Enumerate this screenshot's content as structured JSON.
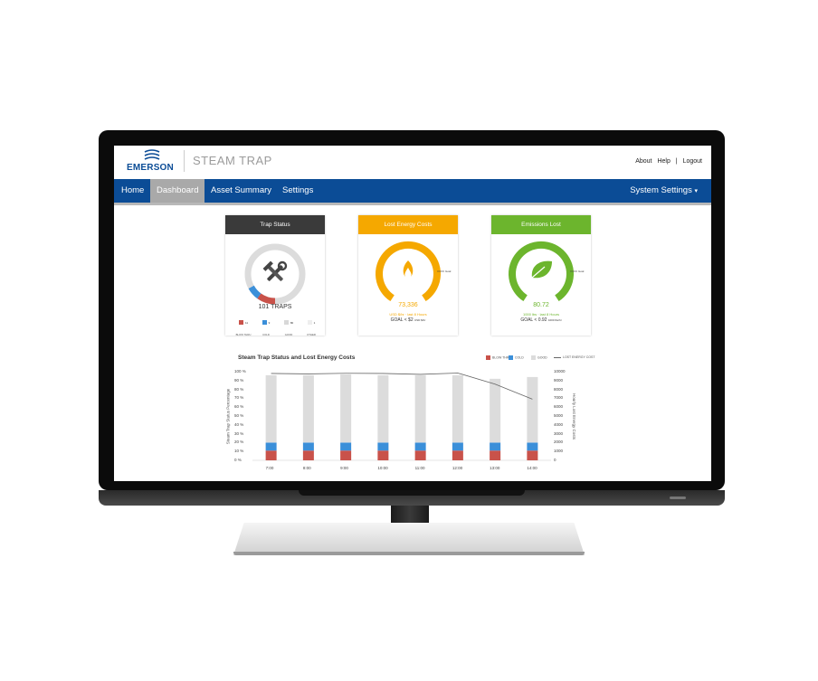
{
  "header": {
    "brand": "EMERSON",
    "product": "STEAM TRAP",
    "links": {
      "about": "About",
      "sep": "|",
      "help": "Help",
      "logout": "Logout"
    }
  },
  "nav": {
    "home": "Home",
    "dashboard": "Dashboard",
    "asset_summary": "Asset Summary",
    "settings": "Settings",
    "system_settings": "System Settings",
    "caret": "▾"
  },
  "trap_status": {
    "title": "Trap Status",
    "count": "101 TRAPS",
    "color": "#3a3a3a",
    "legend": [
      {
        "label": "BLOW THRU",
        "value": "11",
        "color": "#c9524a"
      },
      {
        "label": "COLD",
        "value": "9",
        "color": "#3b8fd9"
      },
      {
        "label": "GOOD",
        "value": "80",
        "color": "#d8d8d8"
      },
      {
        "label": "OTHER",
        "value": "1",
        "color": "#eeeeee"
      }
    ]
  },
  "lost_energy": {
    "title": "Lost Energy Costs",
    "value": "73,336",
    "sub": "USD $/hr · last 8 Hours",
    "goal": "GOAL < $2",
    "goal_unit": "USD $/hr",
    "needle_label": "Goal",
    "color": "#f5a800"
  },
  "emissions": {
    "title": "Emissions Lost",
    "value": "80.72",
    "sub": "1000 lbs · last 8 Hours",
    "goal": "GOAL < 0.92",
    "goal_unit": "1000 lbs/hr",
    "needle_label": "Goal",
    "color": "#6cb52d"
  },
  "chart_data": {
    "type": "bar",
    "title": "Steam Trap Status and Lost Energy Costs",
    "ylabel": "Steam Trap Status Percentage",
    "y2label": "Hourly Lost Energy Costs",
    "categories": [
      "7:00",
      "8:00",
      "9:00",
      "10:00",
      "11:00",
      "12:00",
      "13:00",
      "14:00"
    ],
    "yticks": [
      "0 %",
      "10 %",
      "20 %",
      "30 %",
      "40 %",
      "50 %",
      "60 %",
      "70 %",
      "80 %",
      "90 %",
      "100 %"
    ],
    "y2ticks": [
      "0",
      "1000",
      "2000",
      "3000",
      "4000",
      "5000",
      "6000",
      "7000",
      "8000",
      "9000",
      "10000"
    ],
    "ylim": [
      0,
      100
    ],
    "y2lim": [
      0,
      10000
    ],
    "series": [
      {
        "name": "BLOW THRU",
        "color": "#c9524a",
        "values": [
          11,
          11,
          11,
          11,
          11,
          11,
          11,
          11
        ]
      },
      {
        "name": "COLD",
        "color": "#3b8fd9",
        "values": [
          9,
          9,
          9,
          9,
          9,
          9,
          9,
          9
        ]
      },
      {
        "name": "GOOD",
        "color": "#dcdcdc",
        "values": [
          76,
          76,
          77,
          76,
          76,
          76,
          72,
          74
        ]
      }
    ],
    "line": {
      "name": "LOST ENERGY COST",
      "color": "#666666",
      "values": [
        9800,
        9750,
        9820,
        9800,
        9700,
        9850,
        8600,
        6900
      ]
    }
  }
}
